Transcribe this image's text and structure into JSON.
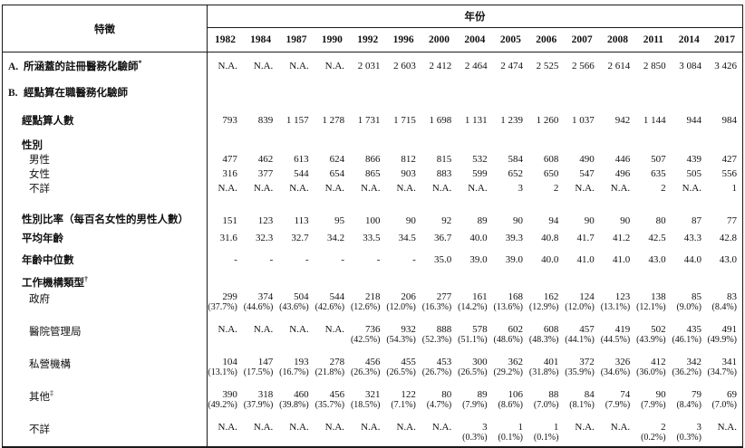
{
  "header": {
    "characteristic": "特徵",
    "year_group": "年份",
    "years": [
      "1982",
      "1984",
      "1987",
      "1990",
      "1992",
      "1996",
      "2000",
      "2004",
      "2005",
      "2006",
      "2007",
      "2008",
      "2011",
      "2014",
      "2017"
    ]
  },
  "rows": [
    {
      "name": "registered-covered",
      "prefix": "A.",
      "label": "所涵蓋的註冊醫務化驗師",
      "sup": "*",
      "level": 0,
      "bold": true,
      "values": [
        "N.A.",
        "N.A.",
        "N.A.",
        "N.A.",
        "2 031",
        "2 603",
        "2 412",
        "2 464",
        "2 474",
        "2 525",
        "2 566",
        "2 614",
        "2 850",
        "3 084",
        "3 426"
      ]
    },
    {
      "name": "enumerated-section",
      "prefix": "B.",
      "label": "經點算在職醫務化驗師",
      "level": 0,
      "bold": true,
      "values": null
    },
    {
      "name": "enumerated-count",
      "label": "經點算人數",
      "level": 1,
      "bold": true,
      "values": [
        "793",
        "839",
        "1 157",
        "1 278",
        "1 731",
        "1 715",
        "1 698",
        "1 131",
        "1 239",
        "1 260",
        "1 037",
        "942",
        "1 144",
        "944",
        "984"
      ]
    },
    {
      "name": "sex-header",
      "label": "性別",
      "level": 1,
      "bold": true,
      "values": null
    },
    {
      "name": "male",
      "label": "男性",
      "level": 2,
      "bold": false,
      "values": [
        "477",
        "462",
        "613",
        "624",
        "866",
        "812",
        "815",
        "532",
        "584",
        "608",
        "490",
        "446",
        "507",
        "439",
        "427"
      ]
    },
    {
      "name": "female",
      "label": "女性",
      "level": 2,
      "bold": false,
      "values": [
        "316",
        "377",
        "544",
        "654",
        "865",
        "903",
        "883",
        "599",
        "652",
        "650",
        "547",
        "496",
        "635",
        "505",
        "556"
      ]
    },
    {
      "name": "unknown-sex",
      "label": "不詳",
      "level": 2,
      "bold": false,
      "values": [
        "N.A.",
        "N.A.",
        "N.A.",
        "N.A.",
        "N.A.",
        "N.A.",
        "N.A.",
        "N.A.",
        "3",
        "2",
        "N.A.",
        "N.A.",
        "2",
        "N.A.",
        "1"
      ]
    },
    {
      "name": "sex-ratio",
      "label": "性別比率（每百名女性的男性人數）",
      "level": 1,
      "bold": true,
      "values": [
        "151",
        "123",
        "113",
        "95",
        "100",
        "90",
        "92",
        "89",
        "90",
        "94",
        "90",
        "90",
        "80",
        "87",
        "77"
      ]
    },
    {
      "name": "mean-age",
      "label": "平均年齡",
      "level": 1,
      "bold": true,
      "values": [
        "31.6",
        "32.3",
        "32.7",
        "34.2",
        "33.5",
        "34.5",
        "36.7",
        "40.0",
        "39.3",
        "40.8",
        "41.7",
        "41.2",
        "42.5",
        "43.3",
        "42.8"
      ]
    },
    {
      "name": "median-age",
      "label": "年齡中位數",
      "level": 1,
      "bold": true,
      "values": [
        "-",
        "-",
        "-",
        "-",
        "-",
        "-",
        "35.0",
        "39.0",
        "39.0",
        "40.0",
        "41.0",
        "41.0",
        "43.0",
        "44.0",
        "43.0"
      ]
    },
    {
      "name": "institution-type-header",
      "label": "工作機構類型",
      "sup": "†",
      "level": 1,
      "bold": true,
      "values": null
    },
    {
      "name": "government",
      "label": "政府",
      "level": 2,
      "bold": false,
      "values": [
        "299",
        "374",
        "504",
        "544",
        "218",
        "206",
        "277",
        "161",
        "168",
        "162",
        "124",
        "123",
        "138",
        "85",
        "83"
      ],
      "pcts": [
        "(37.7%)",
        "(44.6%)",
        "(43.6%)",
        "(42.6%)",
        "(12.6%)",
        "(12.0%)",
        "(16.3%)",
        "(14.2%)",
        "(13.6%)",
        "(12.9%)",
        "(12.0%)",
        "(13.1%)",
        "(12.1%)",
        "(9.0%)",
        "(8.4%)"
      ]
    },
    {
      "name": "hospital-authority",
      "label": "醫院管理局",
      "level": 2,
      "bold": false,
      "values": [
        "N.A.",
        "N.A.",
        "N.A.",
        "N.A.",
        "736",
        "932",
        "888",
        "578",
        "602",
        "608",
        "457",
        "419",
        "502",
        "435",
        "491"
      ],
      "pcts": [
        "",
        "",
        "",
        "",
        "(42.5%)",
        "(54.3%)",
        "(52.3%)",
        "(51.1%)",
        "(48.6%)",
        "(48.3%)",
        "(44.1%)",
        "(44.5%)",
        "(43.9%)",
        "(46.1%)",
        "(49.9%)"
      ]
    },
    {
      "name": "private-institutions",
      "label": "私營機構",
      "level": 2,
      "bold": false,
      "values": [
        "104",
        "147",
        "193",
        "278",
        "456",
        "455",
        "453",
        "300",
        "362",
        "401",
        "372",
        "326",
        "412",
        "342",
        "341"
      ],
      "pcts": [
        "(13.1%)",
        "(17.5%)",
        "(16.7%)",
        "(21.8%)",
        "(26.3%)",
        "(26.5%)",
        "(26.7%)",
        "(26.5%)",
        "(29.2%)",
        "(31.8%)",
        "(35.9%)",
        "(34.6%)",
        "(36.0%)",
        "(36.2%)",
        "(34.7%)"
      ]
    },
    {
      "name": "others",
      "label": "其他",
      "sup": "‡",
      "level": 2,
      "bold": false,
      "values": [
        "390",
        "318",
        "460",
        "456",
        "321",
        "122",
        "80",
        "89",
        "106",
        "88",
        "84",
        "74",
        "90",
        "79",
        "69"
      ],
      "pcts": [
        "(49.2%)",
        "(37.9%)",
        "(39.8%)",
        "(35.7%)",
        "(18.5%)",
        "(7.1%)",
        "(4.7%)",
        "(7.9%)",
        "(8.6%)",
        "(7.0%)",
        "(8.1%)",
        "(7.9%)",
        "(7.9%)",
        "(8.4%)",
        "(7.0%)"
      ]
    },
    {
      "name": "unknown-institution",
      "label": "不詳",
      "level": 2,
      "bold": false,
      "values": [
        "N.A.",
        "N.A.",
        "N.A.",
        "N.A.",
        "N.A.",
        "N.A.",
        "N.A.",
        "3",
        "1",
        "1",
        "N.A.",
        "N.A.",
        "2",
        "3",
        "N.A."
      ],
      "pcts": [
        "",
        "",
        "",
        "",
        "",
        "",
        "",
        "(0.3%)",
        "(0.1%)",
        "(0.1%)",
        "",
        "",
        "(0.2%)",
        "(0.3%)",
        ""
      ]
    }
  ]
}
